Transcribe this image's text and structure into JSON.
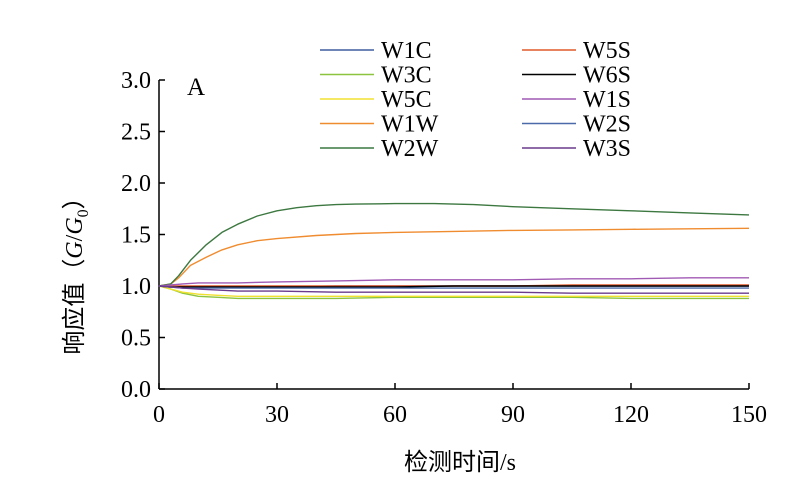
{
  "chart_data": {
    "type": "line",
    "panel_label": "A",
    "xlabel": "检测时间/s",
    "ylabel": "响应值（G/G0）",
    "ylabel_parts": {
      "prefix": "响应值（",
      "G": "G",
      "slash": "/",
      "G0": "G",
      "sub": "0",
      "suffix": "）"
    },
    "xlim": [
      0,
      150
    ],
    "ylim": [
      0,
      3.0
    ],
    "x_ticks": [
      0,
      30,
      60,
      90,
      120,
      150
    ],
    "x_tick_labels": [
      "0",
      "30",
      "60",
      "90",
      "120",
      "150"
    ],
    "y_ticks": [
      0,
      0.5,
      1.0,
      1.5,
      2.0,
      2.5,
      3.0
    ],
    "y_tick_labels": [
      "0.0",
      "0.5",
      "1.0",
      "1.5",
      "2.0",
      "2.5",
      "3.0"
    ],
    "grid": false,
    "legend_position": "top",
    "series": [
      {
        "name": "W1C",
        "color": "#3f5f9f",
        "x": [
          0,
          3,
          6,
          10,
          15,
          20,
          30,
          45,
          60,
          75,
          90,
          105,
          120,
          135,
          150
        ],
        "y": [
          1.0,
          0.99,
          0.99,
          0.99,
          0.99,
          0.99,
          0.99,
          1.0,
          1.0,
          1.0,
          1.0,
          1.0,
          1.0,
          1.0,
          1.0
        ]
      },
      {
        "name": "W3C",
        "color": "#8cc43f",
        "x": [
          0,
          3,
          6,
          10,
          15,
          20,
          30,
          45,
          60,
          75,
          90,
          105,
          120,
          135,
          150
        ],
        "y": [
          1.0,
          0.97,
          0.93,
          0.9,
          0.89,
          0.88,
          0.88,
          0.88,
          0.89,
          0.89,
          0.89,
          0.89,
          0.88,
          0.88,
          0.88
        ]
      },
      {
        "name": "W5C",
        "color": "#f0e030",
        "x": [
          0,
          3,
          6,
          10,
          15,
          20,
          30,
          45,
          60,
          75,
          90,
          105,
          120,
          135,
          150
        ],
        "y": [
          1.0,
          0.97,
          0.94,
          0.92,
          0.91,
          0.9,
          0.9,
          0.9,
          0.9,
          0.9,
          0.9,
          0.9,
          0.9,
          0.9,
          0.9
        ]
      },
      {
        "name": "W1W",
        "color": "#f08c30",
        "x": [
          0,
          3,
          5,
          8,
          12,
          16,
          20,
          25,
          30,
          40,
          50,
          60,
          75,
          90,
          105,
          120,
          135,
          150
        ],
        "y": [
          1.0,
          1.02,
          1.08,
          1.2,
          1.28,
          1.35,
          1.4,
          1.44,
          1.46,
          1.49,
          1.51,
          1.52,
          1.53,
          1.54,
          1.545,
          1.55,
          1.555,
          1.56
        ]
      },
      {
        "name": "W2W",
        "color": "#3c7840",
        "x": [
          0,
          3,
          5,
          8,
          12,
          16,
          20,
          25,
          30,
          35,
          40,
          45,
          50,
          60,
          70,
          80,
          90,
          105,
          120,
          135,
          150
        ],
        "y": [
          1.0,
          1.02,
          1.1,
          1.25,
          1.4,
          1.52,
          1.6,
          1.68,
          1.73,
          1.76,
          1.78,
          1.79,
          1.795,
          1.8,
          1.8,
          1.79,
          1.77,
          1.75,
          1.73,
          1.71,
          1.69
        ]
      },
      {
        "name": "W5S",
        "color": "#e05a2a",
        "x": [
          0,
          3,
          6,
          10,
          15,
          20,
          30,
          45,
          60,
          75,
          90,
          105,
          120,
          135,
          150
        ],
        "y": [
          1.0,
          1.0,
          1.0,
          1.0,
          1.0,
          1.0,
          1.0,
          1.0,
          1.0,
          1.0,
          1.0,
          1.01,
          1.01,
          1.01,
          1.01
        ]
      },
      {
        "name": "W6S",
        "color": "#000000",
        "x": [
          0,
          3,
          6,
          10,
          15,
          20,
          30,
          45,
          60,
          75,
          90,
          105,
          120,
          135,
          150
        ],
        "y": [
          1.0,
          0.99,
          0.99,
          0.99,
          0.99,
          0.99,
          0.99,
          0.99,
          0.99,
          1.0,
          1.0,
          1.0,
          1.0,
          1.0,
          1.0
        ]
      },
      {
        "name": "W1S",
        "color": "#a05ab4",
        "x": [
          0,
          3,
          6,
          10,
          15,
          20,
          30,
          45,
          60,
          75,
          90,
          105,
          120,
          135,
          150
        ],
        "y": [
          1.0,
          1.01,
          1.02,
          1.03,
          1.03,
          1.03,
          1.04,
          1.05,
          1.06,
          1.06,
          1.06,
          1.07,
          1.07,
          1.08,
          1.08
        ]
      },
      {
        "name": "W2S",
        "color": "#4a6aa8",
        "x": [
          0,
          3,
          6,
          10,
          15,
          20,
          30,
          45,
          60,
          75,
          90,
          105,
          120,
          135,
          150
        ],
        "y": [
          1.0,
          0.99,
          0.98,
          0.98,
          0.98,
          0.98,
          0.98,
          0.98,
          0.98,
          0.98,
          0.98,
          0.98,
          0.98,
          0.98,
          0.98
        ]
      },
      {
        "name": "W3S",
        "color": "#6a3a8c",
        "x": [
          0,
          3,
          6,
          10,
          15,
          20,
          30,
          45,
          60,
          75,
          90,
          105,
          120,
          135,
          150
        ],
        "y": [
          1.0,
          0.99,
          0.98,
          0.97,
          0.96,
          0.95,
          0.95,
          0.94,
          0.94,
          0.94,
          0.94,
          0.93,
          0.93,
          0.93,
          0.93
        ]
      }
    ]
  }
}
